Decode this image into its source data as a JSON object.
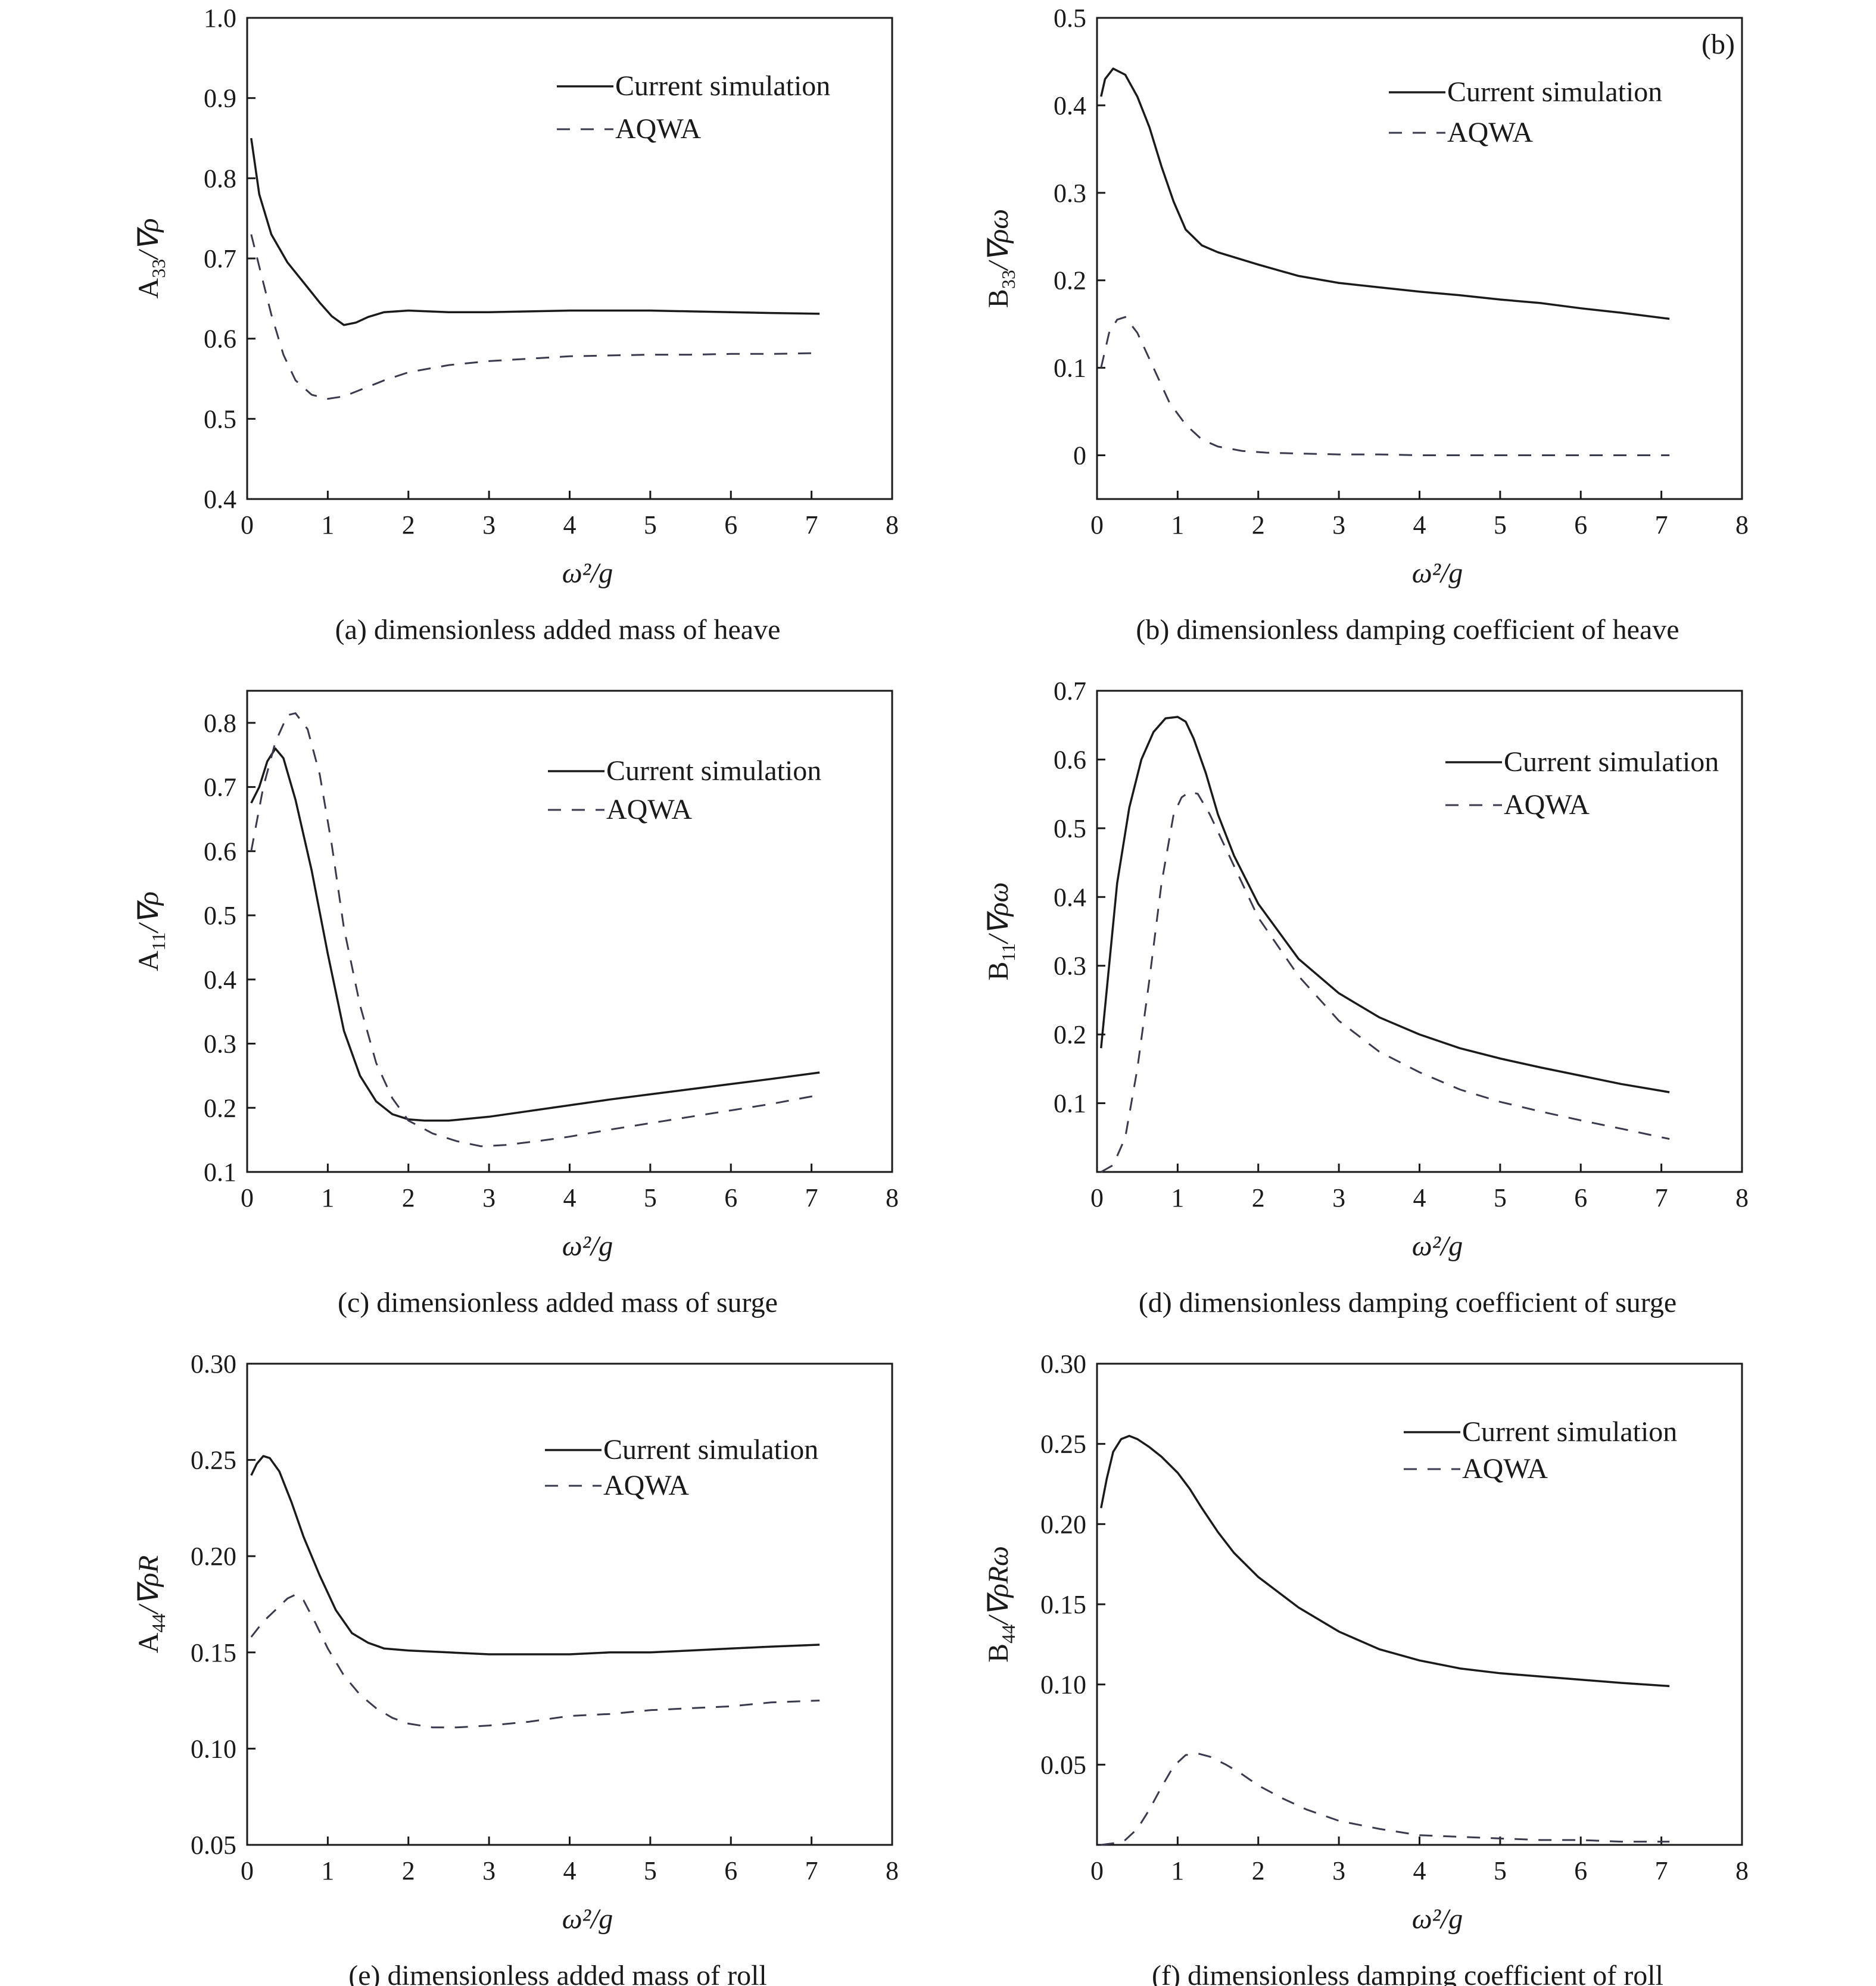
{
  "chart_data": [
    {
      "id": "a",
      "type": "line",
      "caption": "(a) dimensionless added mass of heave",
      "panel_label": "",
      "xlabel": "ω²/g",
      "ylabel": {
        "main": "A",
        "sub": "33",
        "rest": "/∇ρ"
      },
      "xlim": [
        0,
        8
      ],
      "ylim": [
        0.4,
        1.0
      ],
      "xticks": [
        "0",
        "1",
        "2",
        "3",
        "4",
        "5",
        "6",
        "7",
        "8"
      ],
      "yticks": [
        "0.4",
        "0.5",
        "0.6",
        "0.7",
        "0.8",
        "0.9",
        "1.0"
      ],
      "legend_position": "top-right",
      "series": [
        {
          "name": "Current simulation",
          "style": "solid",
          "x": [
            0.05,
            0.15,
            0.3,
            0.5,
            0.7,
            0.9,
            1.05,
            1.2,
            1.35,
            1.5,
            1.7,
            2.0,
            2.5,
            3.0,
            3.5,
            4.0,
            4.5,
            5.0,
            5.5,
            6.0,
            6.5,
            7.1
          ],
          "y": [
            0.85,
            0.78,
            0.73,
            0.695,
            0.67,
            0.645,
            0.628,
            0.617,
            0.62,
            0.627,
            0.633,
            0.635,
            0.633,
            0.633,
            0.634,
            0.635,
            0.635,
            0.635,
            0.634,
            0.633,
            0.632,
            0.631
          ]
        },
        {
          "name": "AQWA",
          "style": "dashed",
          "x": [
            0.05,
            0.15,
            0.3,
            0.45,
            0.6,
            0.8,
            1.0,
            1.2,
            1.4,
            1.7,
            2.0,
            2.5,
            3.0,
            3.5,
            4.0,
            4.5,
            5.0,
            5.5,
            6.0,
            6.5,
            7.1
          ],
          "y": [
            0.73,
            0.69,
            0.63,
            0.58,
            0.548,
            0.53,
            0.525,
            0.528,
            0.536,
            0.548,
            0.558,
            0.567,
            0.572,
            0.575,
            0.578,
            0.579,
            0.58,
            0.58,
            0.581,
            0.581,
            0.582
          ]
        }
      ]
    },
    {
      "id": "b",
      "type": "line",
      "caption": "(b) dimensionless damping coefficient of heave",
      "panel_label": "(b)",
      "xlabel": "ω²/g",
      "ylabel": {
        "main": "B",
        "sub": "33",
        "rest": "/∇ρω"
      },
      "xlim": [
        0,
        8
      ],
      "ylim": [
        -0.05,
        0.5
      ],
      "xticks": [
        "0",
        "1",
        "2",
        "3",
        "4",
        "5",
        "6",
        "7",
        "8"
      ],
      "yticks": [
        "0",
        "0.1",
        "0.2",
        "0.3",
        "0.4",
        "0.5"
      ],
      "legend_position": "top-right",
      "series": [
        {
          "name": "Current simulation",
          "style": "solid",
          "x": [
            0.05,
            0.1,
            0.2,
            0.35,
            0.5,
            0.65,
            0.8,
            0.95,
            1.1,
            1.3,
            1.5,
            2.0,
            2.5,
            3.0,
            3.5,
            4.0,
            4.5,
            5.0,
            5.5,
            6.0,
            6.5,
            7.1
          ],
          "y": [
            0.41,
            0.43,
            0.442,
            0.435,
            0.41,
            0.375,
            0.33,
            0.29,
            0.258,
            0.24,
            0.232,
            0.218,
            0.205,
            0.197,
            0.192,
            0.187,
            0.183,
            0.178,
            0.174,
            0.168,
            0.163,
            0.156
          ]
        },
        {
          "name": "AQWA",
          "style": "dashed",
          "x": [
            0.05,
            0.15,
            0.25,
            0.35,
            0.5,
            0.7,
            0.9,
            1.1,
            1.3,
            1.5,
            1.8,
            2.1,
            2.5,
            3.0,
            3.5,
            4.0,
            5.0,
            6.0,
            7.1
          ],
          "y": [
            0.1,
            0.14,
            0.155,
            0.158,
            0.14,
            0.1,
            0.06,
            0.035,
            0.018,
            0.01,
            0.005,
            0.003,
            0.002,
            0.001,
            0.001,
            0.0,
            0.0,
            0.0,
            0.0
          ]
        }
      ]
    },
    {
      "id": "c",
      "type": "line",
      "caption": "(c) dimensionless added mass of surge",
      "panel_label": "",
      "xlabel": "ω²/g",
      "ylabel": {
        "main": "A",
        "sub": "11",
        "rest": "/∇ρ"
      },
      "xlim": [
        0,
        8
      ],
      "ylim": [
        0.1,
        0.85
      ],
      "xticks": [
        "0",
        "1",
        "2",
        "3",
        "4",
        "5",
        "6",
        "7",
        "8"
      ],
      "yticks": [
        "0.1",
        "0.2",
        "0.3",
        "0.4",
        "0.5",
        "0.6",
        "0.7",
        "0.8"
      ],
      "legend_position": "top-right",
      "series": [
        {
          "name": "Current simulation",
          "style": "solid",
          "x": [
            0.05,
            0.15,
            0.25,
            0.35,
            0.45,
            0.6,
            0.8,
            1.0,
            1.2,
            1.4,
            1.6,
            1.8,
            2.0,
            2.2,
            2.5,
            3.0,
            3.5,
            4.0,
            4.5,
            5.0,
            5.5,
            6.0,
            6.5,
            7.1
          ],
          "y": [
            0.675,
            0.7,
            0.74,
            0.76,
            0.745,
            0.68,
            0.57,
            0.44,
            0.32,
            0.25,
            0.21,
            0.19,
            0.182,
            0.18,
            0.18,
            0.186,
            0.195,
            0.204,
            0.213,
            0.221,
            0.229,
            0.237,
            0.245,
            0.255
          ]
        },
        {
          "name": "AQWA",
          "style": "dashed",
          "x": [
            0.05,
            0.2,
            0.35,
            0.5,
            0.6,
            0.75,
            0.9,
            1.05,
            1.2,
            1.4,
            1.6,
            1.8,
            2.0,
            2.3,
            2.6,
            2.9,
            3.2,
            3.6,
            4.0,
            4.5,
            5.0,
            5.5,
            6.0,
            6.5,
            7.1
          ],
          "y": [
            0.6,
            0.7,
            0.77,
            0.812,
            0.815,
            0.79,
            0.72,
            0.61,
            0.48,
            0.36,
            0.27,
            0.215,
            0.18,
            0.16,
            0.148,
            0.14,
            0.142,
            0.148,
            0.155,
            0.166,
            0.176,
            0.186,
            0.196,
            0.206,
            0.22
          ]
        }
      ]
    },
    {
      "id": "d",
      "type": "line",
      "caption": "(d) dimensionless damping coefficient of surge",
      "panel_label": "",
      "xlabel": "ω²/g",
      "ylabel": {
        "main": "B",
        "sub": "11",
        "rest": "/∇ρω"
      },
      "xlim": [
        0,
        8
      ],
      "ylim": [
        0.0,
        0.7
      ],
      "xticks": [
        "0",
        "1",
        "2",
        "3",
        "4",
        "5",
        "6",
        "7",
        "8"
      ],
      "yticks": [
        "0.1",
        "0.2",
        "0.3",
        "0.4",
        "0.5",
        "0.6",
        "0.7"
      ],
      "legend_position": "top-right",
      "series": [
        {
          "name": "Current simulation",
          "style": "solid",
          "x": [
            0.05,
            0.15,
            0.25,
            0.4,
            0.55,
            0.7,
            0.85,
            1.0,
            1.1,
            1.2,
            1.35,
            1.5,
            1.7,
            2.0,
            2.5,
            3.0,
            3.5,
            4.0,
            4.5,
            5.0,
            5.5,
            6.0,
            6.5,
            7.1
          ],
          "y": [
            0.18,
            0.3,
            0.42,
            0.53,
            0.6,
            0.64,
            0.66,
            0.662,
            0.655,
            0.63,
            0.58,
            0.52,
            0.46,
            0.39,
            0.31,
            0.26,
            0.225,
            0.2,
            0.18,
            0.165,
            0.152,
            0.14,
            0.128,
            0.116
          ]
        },
        {
          "name": "AQWA",
          "style": "dashed",
          "x": [
            0.05,
            0.2,
            0.35,
            0.5,
            0.65,
            0.8,
            0.95,
            1.05,
            1.15,
            1.25,
            1.4,
            1.6,
            1.8,
            2.0,
            2.5,
            3.0,
            3.5,
            4.0,
            4.5,
            5.0,
            5.5,
            6.0,
            6.5,
            7.1
          ],
          "y": [
            0.0,
            0.01,
            0.05,
            0.15,
            0.28,
            0.42,
            0.52,
            0.545,
            0.553,
            0.55,
            0.52,
            0.47,
            0.42,
            0.37,
            0.285,
            0.22,
            0.175,
            0.145,
            0.12,
            0.102,
            0.088,
            0.075,
            0.063,
            0.048
          ]
        }
      ]
    },
    {
      "id": "e",
      "type": "line",
      "caption": "(e) dimensionless added mass of roll",
      "panel_label": "",
      "xlabel": "ω²/g",
      "ylabel": {
        "main": "A",
        "sub": "44",
        "rest": "/∇ρR"
      },
      "xlim": [
        0,
        8
      ],
      "ylim": [
        0.05,
        0.3
      ],
      "xticks": [
        "0",
        "1",
        "2",
        "3",
        "4",
        "5",
        "6",
        "7",
        "8"
      ],
      "yticks": [
        "0.05",
        "0.10",
        "0.15",
        "0.20",
        "0.25",
        "0.30"
      ],
      "legend_position": "top-right",
      "series": [
        {
          "name": "Current simulation",
          "style": "solid",
          "x": [
            0.05,
            0.12,
            0.2,
            0.28,
            0.4,
            0.55,
            0.7,
            0.9,
            1.1,
            1.3,
            1.5,
            1.7,
            2.0,
            2.5,
            3.0,
            3.5,
            4.0,
            4.5,
            5.0,
            5.5,
            6.0,
            6.5,
            7.1
          ],
          "y": [
            0.242,
            0.248,
            0.252,
            0.251,
            0.244,
            0.228,
            0.21,
            0.19,
            0.172,
            0.16,
            0.155,
            0.152,
            0.151,
            0.15,
            0.149,
            0.149,
            0.149,
            0.15,
            0.15,
            0.151,
            0.152,
            0.153,
            0.154
          ]
        },
        {
          "name": "AQWA",
          "style": "dashed",
          "x": [
            0.05,
            0.2,
            0.35,
            0.5,
            0.6,
            0.7,
            0.85,
            1.0,
            1.2,
            1.4,
            1.6,
            1.8,
            2.0,
            2.3,
            2.6,
            3.0,
            3.5,
            4.0,
            4.5,
            5.0,
            5.5,
            6.0,
            6.5,
            7.1
          ],
          "y": [
            0.158,
            0.166,
            0.172,
            0.178,
            0.18,
            0.177,
            0.165,
            0.152,
            0.138,
            0.128,
            0.121,
            0.116,
            0.113,
            0.111,
            0.111,
            0.112,
            0.114,
            0.117,
            0.118,
            0.12,
            0.121,
            0.122,
            0.124,
            0.125
          ]
        }
      ]
    },
    {
      "id": "f",
      "type": "line",
      "caption": "(f) dimensionless damping coefficient of roll",
      "panel_label": "",
      "xlabel": "ω²/g",
      "ylabel": {
        "main": "B",
        "sub": "44",
        "rest": "/∇ρRω"
      },
      "xlim": [
        0,
        8
      ],
      "ylim": [
        0.0,
        0.3
      ],
      "xticks": [
        "0",
        "1",
        "2",
        "3",
        "4",
        "5",
        "6",
        "7",
        "8"
      ],
      "yticks": [
        "0.05",
        "0.10",
        "0.15",
        "0.20",
        "0.25",
        "0.30"
      ],
      "legend_position": "top-right",
      "series": [
        {
          "name": "Current simulation",
          "style": "solid",
          "x": [
            0.05,
            0.12,
            0.2,
            0.3,
            0.4,
            0.5,
            0.65,
            0.8,
            1.0,
            1.15,
            1.3,
            1.5,
            1.7,
            2.0,
            2.5,
            3.0,
            3.5,
            4.0,
            4.5,
            5.0,
            5.5,
            6.0,
            6.5,
            7.1
          ],
          "y": [
            0.21,
            0.228,
            0.245,
            0.253,
            0.255,
            0.253,
            0.248,
            0.242,
            0.232,
            0.222,
            0.21,
            0.195,
            0.182,
            0.167,
            0.148,
            0.133,
            0.122,
            0.115,
            0.11,
            0.107,
            0.105,
            0.103,
            0.101,
            0.099
          ]
        },
        {
          "name": "AQWA",
          "style": "dashed",
          "x": [
            0.05,
            0.2,
            0.35,
            0.5,
            0.65,
            0.8,
            0.95,
            1.1,
            1.25,
            1.4,
            1.6,
            1.8,
            2.0,
            2.3,
            2.6,
            3.0,
            3.5,
            4.0,
            4.5,
            5.0,
            5.5,
            6.0,
            6.5,
            7.1
          ],
          "y": [
            0.0,
            0.001,
            0.003,
            0.01,
            0.022,
            0.036,
            0.049,
            0.056,
            0.057,
            0.055,
            0.05,
            0.044,
            0.037,
            0.029,
            0.022,
            0.015,
            0.01,
            0.006,
            0.005,
            0.004,
            0.003,
            0.003,
            0.002,
            0.002
          ]
        }
      ]
    }
  ]
}
